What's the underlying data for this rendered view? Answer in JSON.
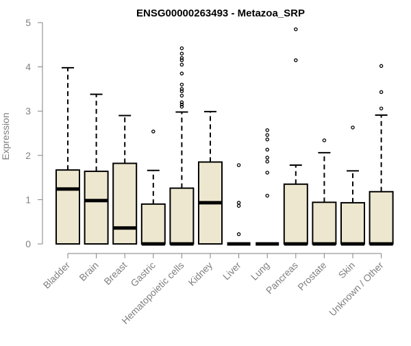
{
  "chart_data": {
    "type": "boxplot",
    "title": "ENSG00000263493 - Metazoa_SRP",
    "ylabel": "Expression",
    "xlabel": "",
    "ylim": [
      0,
      5
    ],
    "yticks": [
      "0",
      "1",
      "2",
      "3",
      "4",
      "5"
    ],
    "grid": false,
    "categories": [
      "Bladder",
      "Brain",
      "Breast",
      "Gastric",
      "Hematopoietic cells",
      "Kidney",
      "Liver",
      "Lung",
      "Pancreas",
      "Prostate",
      "Skin",
      "Unknown / Other"
    ],
    "boxes": [
      {
        "category": "Bladder",
        "min": 0,
        "q1": 0,
        "median": 1.24,
        "q3": 1.67,
        "max": 3.98,
        "outliers": []
      },
      {
        "category": "Brain",
        "min": 0,
        "q1": 0,
        "median": 0.98,
        "q3": 1.64,
        "max": 3.38,
        "outliers": []
      },
      {
        "category": "Breast",
        "min": 0,
        "q1": 0,
        "median": 0.36,
        "q3": 1.82,
        "max": 2.9,
        "outliers": []
      },
      {
        "category": "Gastric",
        "min": 0,
        "q1": 0,
        "median": 0,
        "q3": 0.9,
        "max": 1.66,
        "outliers": [
          2.54
        ]
      },
      {
        "category": "Hematopoietic cells",
        "min": 0,
        "q1": 0,
        "median": 0,
        "q3": 1.26,
        "max": 2.98,
        "outliers": [
          3.1,
          3.15,
          3.2,
          3.35,
          3.45,
          3.5,
          3.6,
          3.85,
          4.05,
          4.15,
          4.2,
          4.3,
          4.42
        ]
      },
      {
        "category": "Kidney",
        "min": 0,
        "q1": 0,
        "median": 0.93,
        "q3": 1.85,
        "max": 2.99,
        "outliers": []
      },
      {
        "category": "Liver",
        "min": 0,
        "q1": 0,
        "median": 0,
        "q3": 0,
        "max": 0,
        "outliers": [
          0.22,
          0.86,
          0.93,
          1.78
        ]
      },
      {
        "category": "Lung",
        "min": 0,
        "q1": 0,
        "median": 0,
        "q3": 0,
        "max": 0,
        "outliers": [
          1.09,
          1.61,
          1.86,
          1.95,
          2.13,
          2.36,
          2.46,
          2.57
        ]
      },
      {
        "category": "Pancreas",
        "min": 0,
        "q1": 0,
        "median": 0,
        "q3": 1.35,
        "max": 1.78,
        "outliers": [
          4.15,
          4.85
        ]
      },
      {
        "category": "Prostate",
        "min": 0,
        "q1": 0,
        "median": 0,
        "q3": 0.94,
        "max": 2.06,
        "outliers": [
          2.34
        ]
      },
      {
        "category": "Skin",
        "min": 0,
        "q1": 0,
        "median": 0,
        "q3": 0.93,
        "max": 1.65,
        "outliers": [
          2.63
        ]
      },
      {
        "category": "Unknown / Other",
        "min": 0,
        "q1": 0,
        "median": 0,
        "q3": 1.18,
        "max": 2.91,
        "outliers": [
          3.06,
          3.43,
          4.02
        ]
      }
    ],
    "colors": {
      "box_fill": "#ede7cf",
      "box_stroke": "#000000",
      "axis": "#7f7f7f",
      "tick_text": "#7f7f7f",
      "title": "#000000"
    }
  }
}
